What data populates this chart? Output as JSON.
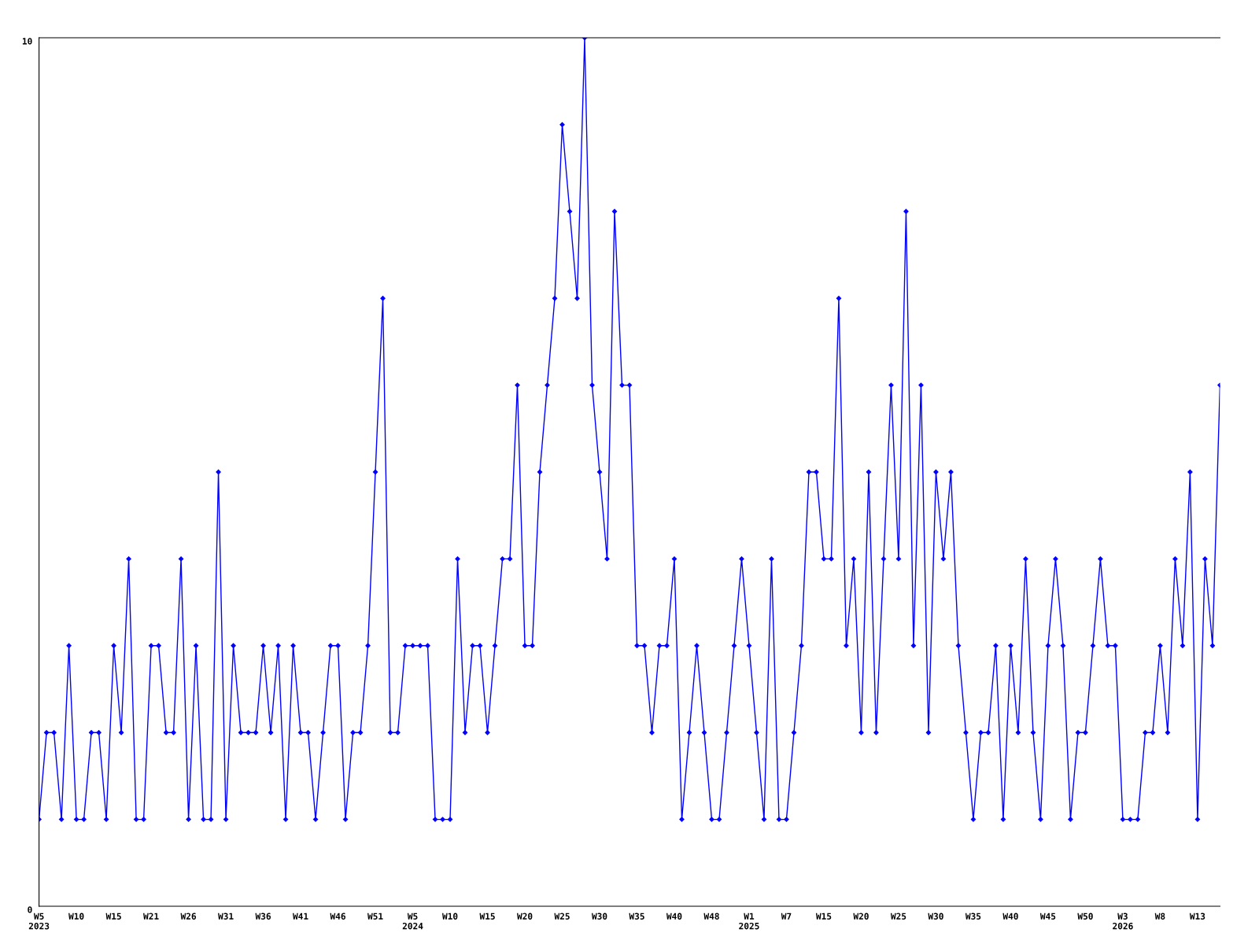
{
  "chart_data": {
    "type": "line",
    "categories": [
      "W5\n2023",
      null,
      null,
      null,
      null,
      "W10",
      null,
      null,
      null,
      null,
      "W15",
      null,
      null,
      null,
      null,
      "W21",
      null,
      null,
      null,
      null,
      "W26",
      null,
      null,
      null,
      null,
      "W31",
      null,
      null,
      null,
      null,
      "W36",
      null,
      null,
      null,
      null,
      "W41",
      null,
      null,
      null,
      null,
      "W46",
      null,
      null,
      null,
      null,
      "W51",
      null,
      null,
      null,
      null,
      "W5\n2024",
      null,
      null,
      null,
      null,
      "W10",
      null,
      null,
      null,
      null,
      "W15",
      null,
      null,
      null,
      null,
      "W20",
      null,
      null,
      null,
      null,
      "W25",
      null,
      null,
      null,
      null,
      "W30",
      null,
      null,
      null,
      null,
      "W35",
      null,
      null,
      null,
      null,
      "W40",
      null,
      null,
      null,
      null,
      "W48",
      null,
      null,
      null,
      null,
      "W1\n2025",
      null,
      null,
      null,
      null,
      "W7",
      null,
      null,
      null,
      null,
      "W15",
      null,
      null,
      null,
      null,
      "W20",
      null,
      null,
      null,
      null,
      "W25",
      null,
      null,
      null,
      null,
      "W30",
      null,
      null,
      null,
      null,
      "W35",
      null,
      null,
      null,
      null,
      "W40",
      null,
      null,
      null,
      null,
      "W45",
      null,
      null,
      null,
      null,
      "W50",
      null,
      null,
      null,
      null,
      "W3\n2026",
      null,
      null,
      null,
      null,
      "W8",
      null,
      null,
      null,
      null,
      "W13",
      null,
      null,
      null
    ],
    "series": [
      {
        "color": "#0000ff",
        "values": [
          1,
          2,
          2,
          1,
          3,
          1,
          1,
          2,
          2,
          1,
          3,
          2,
          4,
          1,
          1,
          3,
          3,
          2,
          2,
          4,
          1,
          3,
          1,
          1,
          5,
          1,
          3,
          2,
          2,
          2,
          3,
          2,
          3,
          1,
          3,
          2,
          2,
          1,
          2,
          3,
          3,
          1,
          2,
          2,
          3,
          5,
          7,
          2,
          2,
          3,
          3,
          3,
          3,
          1,
          1,
          1,
          4,
          2,
          3,
          3,
          2,
          3,
          4,
          4,
          6,
          3,
          3,
          5,
          6,
          7,
          9,
          8,
          7,
          10,
          6,
          5,
          4,
          8,
          6,
          6,
          3,
          3,
          2,
          3,
          3,
          4,
          1,
          2,
          3,
          2,
          1,
          1,
          2,
          3,
          4,
          3,
          2,
          1,
          4,
          1,
          1,
          2,
          3,
          5,
          5,
          4,
          4,
          7,
          3,
          4,
          2,
          5,
          2,
          4,
          6,
          4,
          8,
          3,
          6,
          2,
          5,
          4,
          5,
          3,
          2,
          1,
          2,
          2,
          3,
          1,
          3,
          2,
          4,
          2,
          1,
          3,
          4,
          3,
          1,
          2,
          2,
          3,
          4,
          3,
          3,
          1,
          1,
          1,
          2,
          2,
          3,
          2,
          4,
          3,
          5,
          1,
          4,
          3,
          6
        ]
      }
    ],
    "ylim": [
      0,
      10
    ],
    "yticks": [
      0,
      10
    ],
    "grid": false,
    "legend": false,
    "marker": "diamond",
    "line_style": "solid"
  }
}
